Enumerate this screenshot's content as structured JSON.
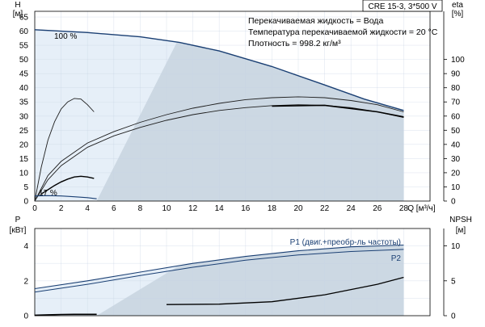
{
  "header": {
    "model": "CRE 15-3, 3*500 V",
    "info_lines": [
      "Перекачиваемая жидкость = Вода",
      "Температура перекачиваемой жидкости = 20 °C",
      "Плотность = 998.2 кг/м³"
    ]
  },
  "colors": {
    "grid": "#c8d4e4",
    "region_dark": "#ccd8e3",
    "region_light": "#e6eff8",
    "curve_blue": "#1a3f73",
    "curve_black": "#000000",
    "frame": "#000000"
  },
  "chart_data": [
    {
      "type": "line",
      "title": "",
      "x_axis": {
        "label": "Q [м³/ч]",
        "range": [
          0,
          30
        ],
        "ticks": [
          "0",
          "2",
          "4",
          "6",
          "8",
          "10",
          "12",
          "14",
          "16",
          "18",
          "20",
          "22",
          "24",
          "26",
          "28"
        ]
      },
      "y_left": {
        "label_top": "H",
        "label_unit": "[м]",
        "range": [
          0,
          67
        ],
        "ticks": [
          "0",
          "5",
          "10",
          "15",
          "20",
          "25",
          "30",
          "35",
          "40",
          "45",
          "50",
          "55",
          "60",
          "65"
        ]
      },
      "y_right": {
        "label_top": "eta",
        "label_unit": "[%]",
        "range": [
          0,
          134
        ],
        "ticks": [
          "0",
          "10",
          "20",
          "30",
          "40",
          "50",
          "60",
          "70",
          "80",
          "90",
          "100"
        ]
      },
      "annotations": {
        "speed_max": "100 %",
        "speed_min": "17 %"
      },
      "series": [
        {
          "role": "head_max_speed",
          "axis": "left",
          "x": [
            0,
            4,
            8,
            11,
            14,
            18,
            22,
            25,
            28
          ],
          "y": [
            60.5,
            59.5,
            58,
            56,
            53,
            47.5,
            41,
            36,
            32
          ]
        },
        {
          "role": "head_upper",
          "axis": "left",
          "x": [
            0,
            1,
            2,
            4,
            6,
            8,
            10,
            12,
            14,
            16,
            18,
            20,
            22,
            24,
            26,
            28
          ],
          "y": [
            0,
            9,
            14,
            20.5,
            24.5,
            27.8,
            30.5,
            32.8,
            34.5,
            35.8,
            36.5,
            36.8,
            36.5,
            35.5,
            34,
            31.5
          ]
        },
        {
          "role": "head_lower",
          "axis": "left",
          "x": [
            0,
            1,
            2,
            4,
            6,
            8,
            10,
            12,
            14,
            16,
            18,
            20,
            22,
            24,
            26,
            28
          ],
          "y": [
            0,
            7.5,
            12.5,
            19,
            23,
            26,
            28.5,
            30.5,
            32,
            33,
            33.7,
            34,
            33.8,
            33,
            31.5,
            29.5
          ]
        },
        {
          "role": "head_efficiency_point",
          "axis": "left",
          "x": [
            18,
            22,
            26,
            28
          ],
          "y": [
            33.5,
            33.8,
            31.5,
            29.7
          ]
        },
        {
          "role": "efficiency_max_speed",
          "axis": "right",
          "x": [
            0,
            0.5,
            1,
            1.5,
            2,
            2.5,
            3,
            3.5,
            4,
            4.5
          ],
          "y": [
            0,
            24,
            43,
            56,
            65,
            70,
            72.5,
            72,
            68,
            63
          ]
        },
        {
          "role": "efficiency_low_speed",
          "axis": "right",
          "x": [
            0.5,
            1,
            1.5,
            2,
            2.5,
            3,
            3.5,
            4,
            4.5
          ],
          "y": [
            5,
            8,
            11,
            13.5,
            15.5,
            17,
            17.5,
            17,
            16
          ]
        },
        {
          "role": "head_min_speed",
          "axis": "left",
          "x": [
            0,
            1,
            2,
            3,
            4,
            4.7
          ],
          "y": [
            1.8,
            1.9,
            1.8,
            1.5,
            1.2,
            0.8
          ]
        }
      ]
    },
    {
      "type": "line",
      "title": "",
      "x_axis": {
        "range": [
          0,
          30
        ]
      },
      "y_left": {
        "label_top": "P",
        "label_unit": "[кВт]",
        "range": [
          0,
          5
        ],
        "ticks": [
          "0",
          "2",
          "4"
        ]
      },
      "y_right": {
        "label_top": "NPSH",
        "label_unit": "[м]",
        "range": [
          0,
          12.5
        ],
        "ticks": [
          "0",
          "5",
          "10"
        ]
      },
      "series": [
        {
          "name": "P1 (двиг.+преобр-ль частоты)",
          "axis": "left",
          "x": [
            0,
            4,
            8,
            12,
            16,
            20,
            24,
            28
          ],
          "y": [
            1.55,
            2.0,
            2.5,
            3.0,
            3.4,
            3.72,
            3.95,
            4.05
          ]
        },
        {
          "name": "P2",
          "axis": "left",
          "x": [
            0,
            4,
            8,
            12,
            16,
            20,
            24,
            28
          ],
          "y": [
            1.35,
            1.8,
            2.3,
            2.78,
            3.18,
            3.48,
            3.68,
            3.8
          ]
        },
        {
          "role": "npsh",
          "axis": "right",
          "x": [
            10,
            14,
            18,
            22,
            26,
            28
          ],
          "y": [
            1.6,
            1.65,
            2.0,
            3.0,
            4.5,
            5.5
          ]
        },
        {
          "role": "power_min_speed",
          "axis": "left",
          "x": [
            0,
            1,
            2,
            3,
            4,
            4.7
          ],
          "y": [
            0.03,
            0.05,
            0.07,
            0.08,
            0.08,
            0.08
          ]
        }
      ]
    }
  ]
}
